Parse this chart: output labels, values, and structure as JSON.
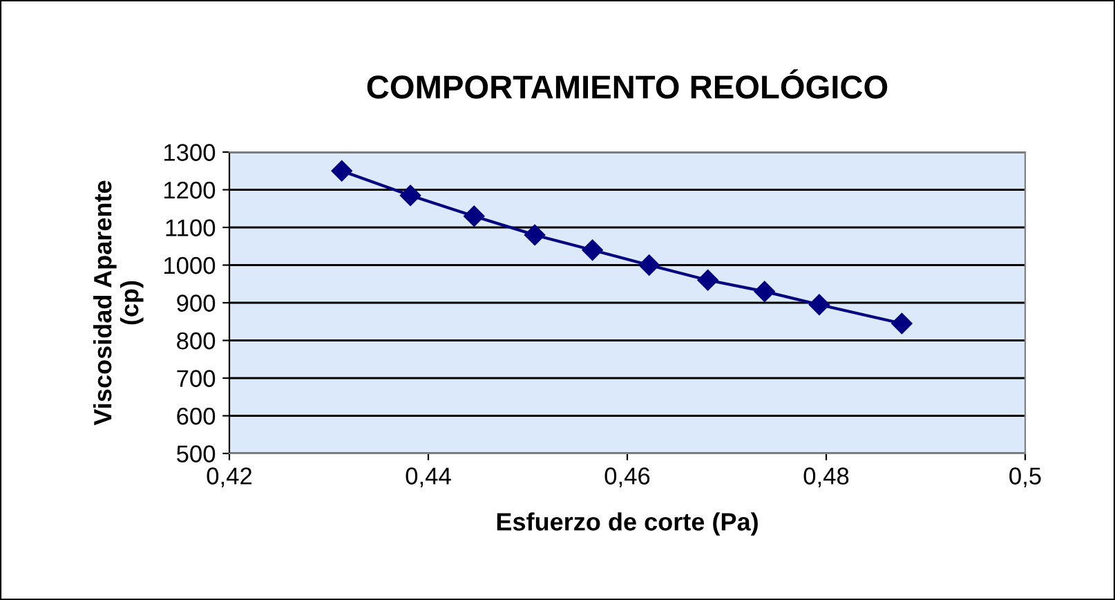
{
  "chart_data": {
    "type": "line",
    "title": "COMPORTAMIENTO REOLÓGICO",
    "xlabel": "Esfuerzo de corte (Pa)",
    "ylabel": "Viscosidad Aparente\n(cp)",
    "x": [
      0.4313,
      0.4382,
      0.4446,
      0.4507,
      0.4565,
      0.4622,
      0.4681,
      0.4738,
      0.4793,
      0.4876
    ],
    "series": [
      {
        "color": "#000080",
        "values": [
          1250,
          1185,
          1130,
          1080,
          1040,
          1000,
          960,
          930,
          895,
          845
        ]
      }
    ],
    "xlim": [
      0.42,
      0.5
    ],
    "xticks": [
      {
        "value": 0.42,
        "label": "0,42"
      },
      {
        "value": 0.44,
        "label": "0,44"
      },
      {
        "value": 0.46,
        "label": "0,46"
      },
      {
        "value": 0.48,
        "label": "0,48"
      },
      {
        "value": 0.5,
        "label": "0,5"
      }
    ],
    "ylim": [
      500,
      1300
    ],
    "yticks": [
      500,
      600,
      700,
      800,
      900,
      1000,
      1100,
      1200,
      1300
    ],
    "grid": "y",
    "marker": "diamond",
    "line_style": "solid",
    "legend": false
  }
}
